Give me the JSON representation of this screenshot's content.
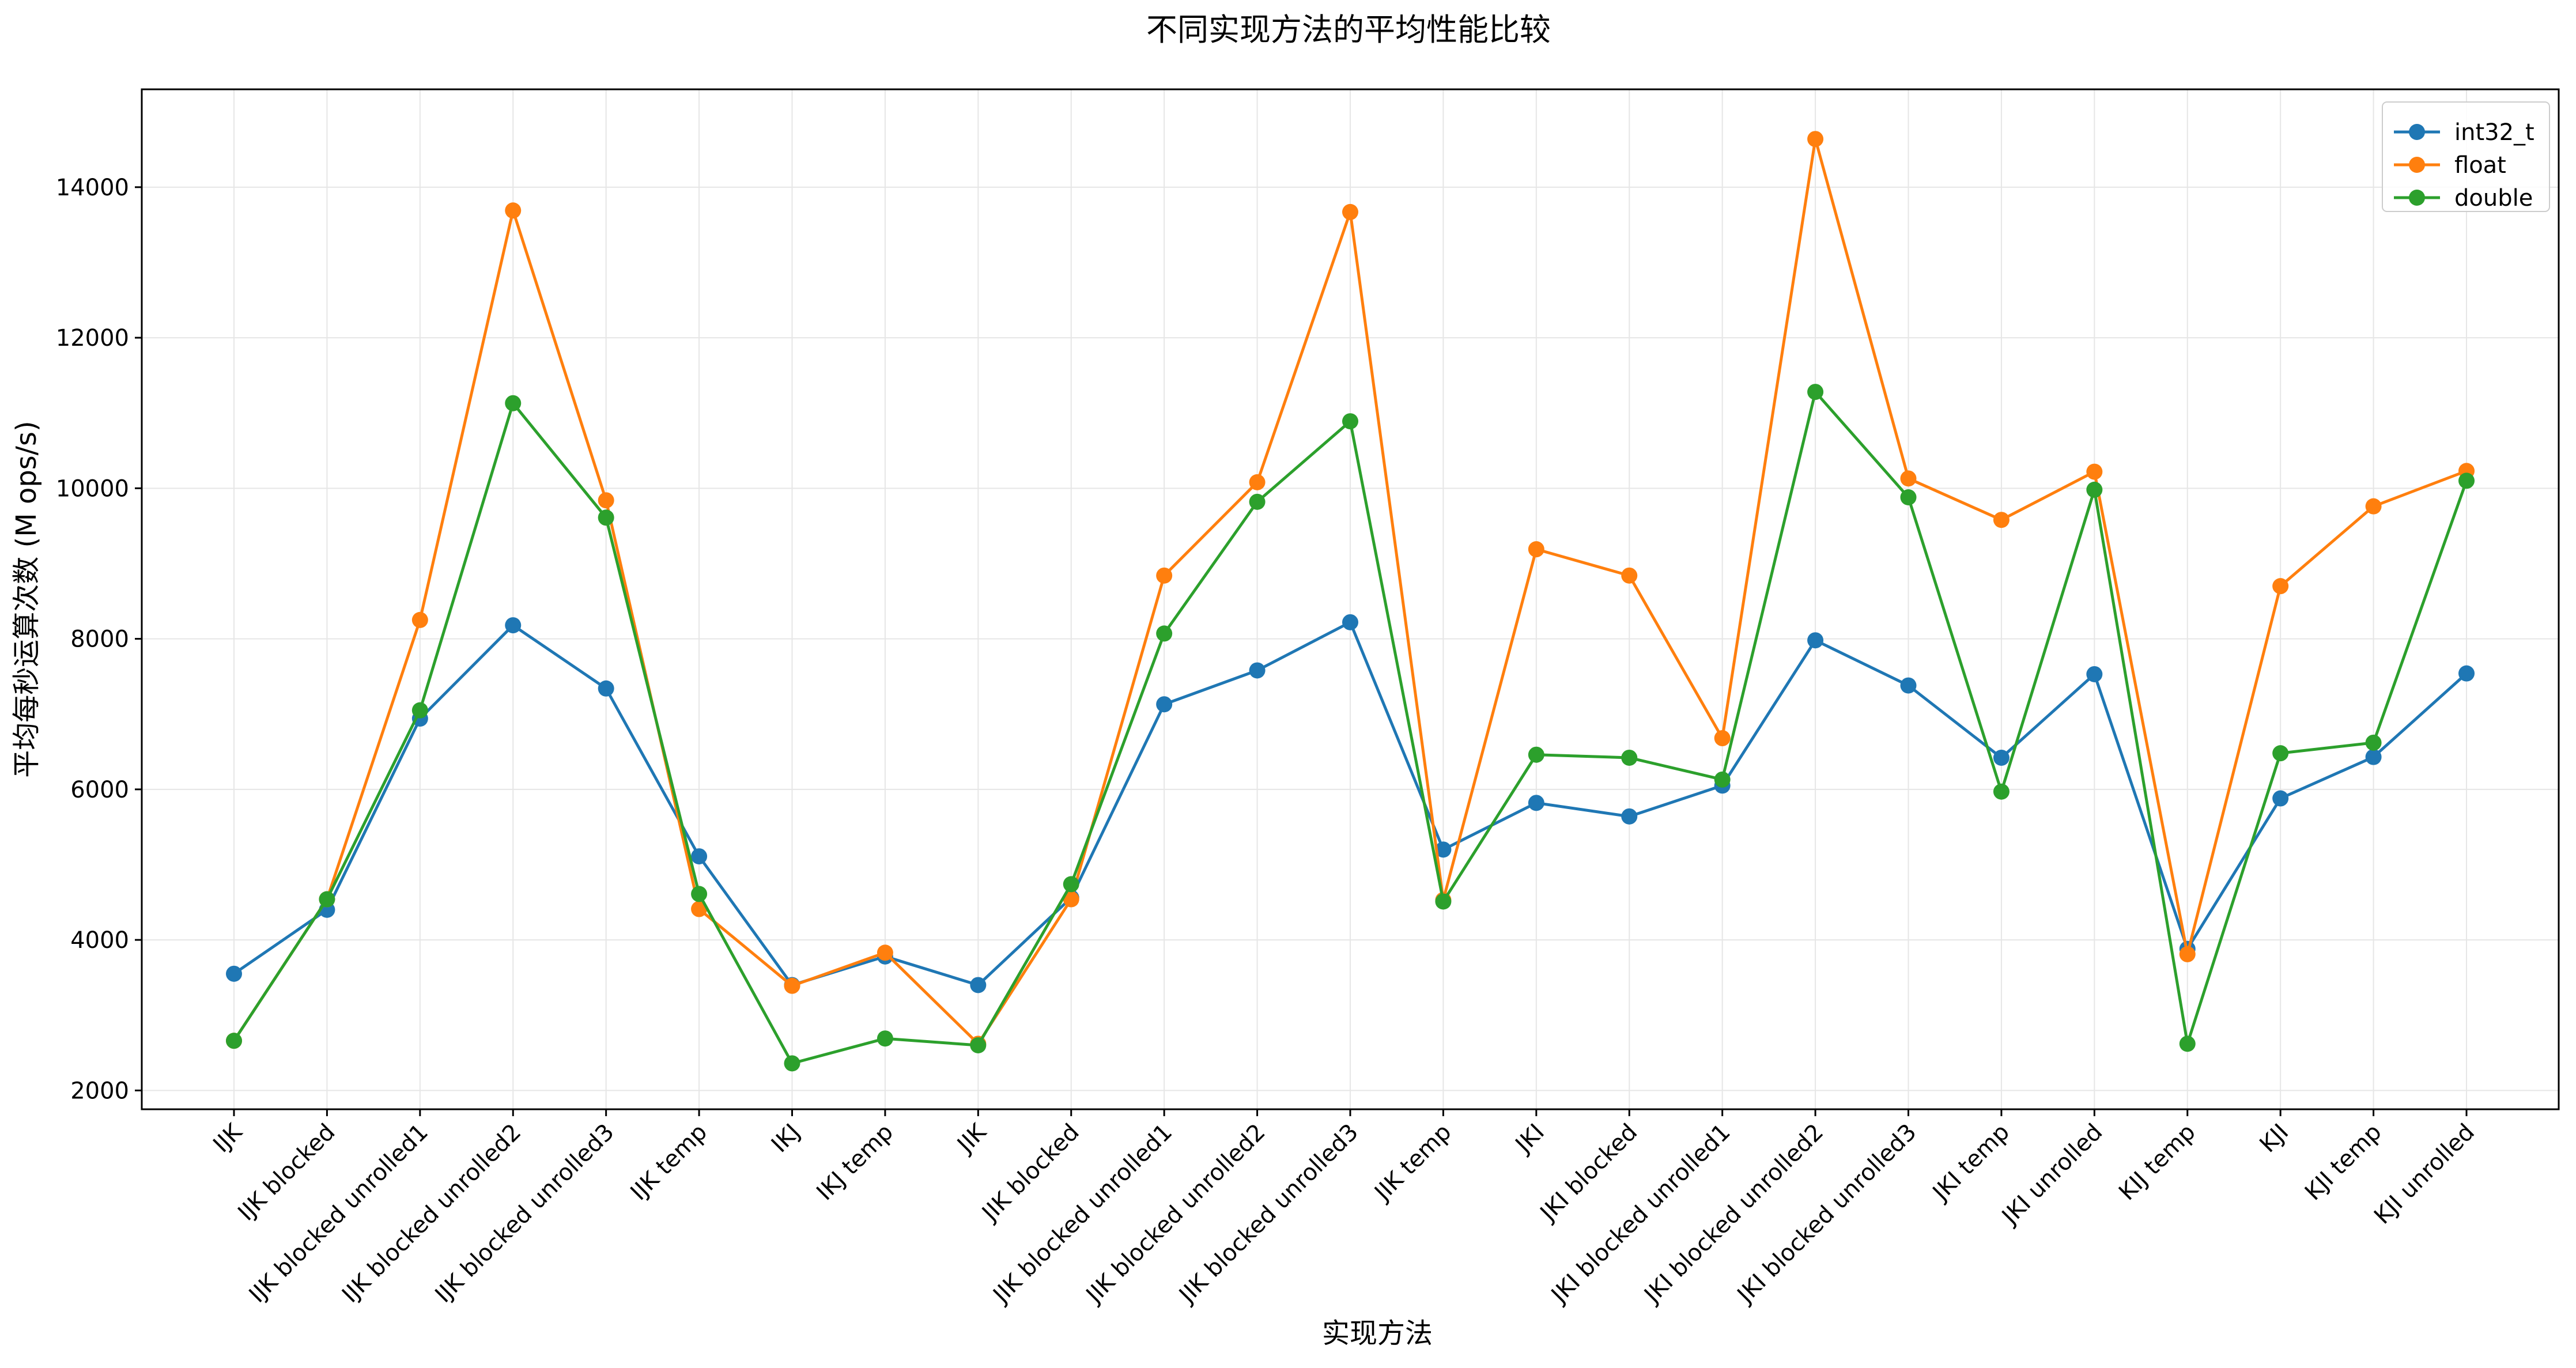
{
  "chart_data": {
    "type": "line",
    "title": "不同实现方法的平均性能比较",
    "xlabel": "实现方法",
    "ylabel": "平均每秒运算次数 (M ops/s)",
    "categories": [
      "IJK",
      "IJK blocked",
      "IJK blocked unrolled1",
      "IJK blocked unrolled2",
      "IJK blocked unrolled3",
      "IJK temp",
      "IKJ",
      "IKJ temp",
      "JIK",
      "JIK blocked",
      "JIK blocked unrolled1",
      "JIK blocked unrolled2",
      "JIK blocked unrolled3",
      "JIK temp",
      "JKI",
      "JKI blocked",
      "JKI blocked unrolled1",
      "JKI blocked unrolled2",
      "JKI blocked unrolled3",
      "JKI temp",
      "JKI unrolled",
      "KIJ temp",
      "KJI",
      "KJI temp",
      "KJI unrolled"
    ],
    "series": [
      {
        "name": "int32_t",
        "color": "#1f77b4",
        "values": [
          3550,
          4400,
          6940,
          8180,
          7340,
          5110,
          3400,
          3780,
          3400,
          4560,
          7130,
          7580,
          8220,
          5200,
          5820,
          5640,
          6050,
          7980,
          7380,
          6420,
          7530,
          3880,
          5880,
          6430,
          7540
        ]
      },
      {
        "name": "float",
        "color": "#ff7f0e",
        "values": [
          2660,
          4540,
          8250,
          13690,
          9840,
          4410,
          3390,
          3830,
          2620,
          4540,
          8840,
          10080,
          13670,
          4530,
          9190,
          8840,
          6680,
          14640,
          10130,
          9580,
          10220,
          3810,
          8700,
          9760,
          10230
        ]
      },
      {
        "name": "double",
        "color": "#2ca02c",
        "values": [
          2660,
          4540,
          7050,
          11130,
          9610,
          4610,
          2360,
          2690,
          2600,
          4740,
          8070,
          9820,
          10890,
          4510,
          6460,
          6420,
          6130,
          11280,
          9880,
          5970,
          9980,
          2620,
          6480,
          6620,
          10100
        ]
      }
    ],
    "y_ticks": [
      2000,
      4000,
      6000,
      8000,
      10000,
      12000,
      14000
    ],
    "ylim": [
      1750,
      15300
    ],
    "grid": true,
    "legend_position": "top-right",
    "marker": "circle"
  }
}
